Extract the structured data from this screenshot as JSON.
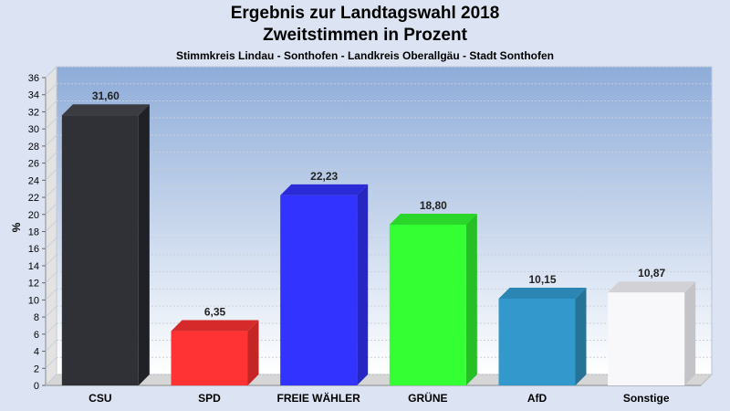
{
  "header": {
    "title": "Ergebnis zur Landtagswahl 2018",
    "subtitle": "Zweitstimmen in Prozent",
    "caption": "Stimmkreis Lindau - Sonthofen - Landkreis Oberallgäu - Stadt Sonthofen"
  },
  "chart_data": {
    "type": "bar",
    "title": "Ergebnis zur Landtagswahl 2018",
    "subtitle": "Zweitstimmen in Prozent",
    "ylabel": "%",
    "xlabel": "",
    "ylim": [
      0,
      36
    ],
    "ytick_step": 2,
    "grid": true,
    "categories": [
      "CSU",
      "SPD",
      "FREIE WÄHLER",
      "GRÜNE",
      "AfD",
      "Sonstige"
    ],
    "values": [
      31.6,
      6.35,
      22.23,
      18.8,
      10.15,
      10.87
    ],
    "value_labels": [
      "31,60",
      "6,35",
      "22,23",
      "18,80",
      "10,15",
      "10,87"
    ],
    "colors": [
      "#2f3136",
      "#ff3333",
      "#3333ff",
      "#33ff33",
      "#3399cc",
      "#f8f8fb"
    ],
    "side_colors": [
      "#1f2126",
      "#c42626",
      "#2626c0",
      "#26c026",
      "#267398",
      "#c4c4c8"
    ],
    "top_colors": [
      "#3a3c42",
      "#d62a2a",
      "#2a2ad6",
      "#2ad62a",
      "#2b86b3",
      "#d2d2d6"
    ]
  }
}
